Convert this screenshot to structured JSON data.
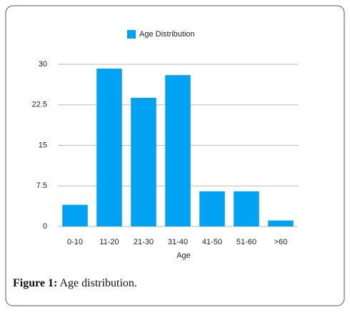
{
  "chart_data": {
    "type": "bar",
    "legend": "Age Distribution",
    "xlabel": "Age",
    "categories": [
      "0-10",
      "11-20",
      "21-30",
      "31-40",
      "41-50",
      "51-60",
      ">60"
    ],
    "series": [
      {
        "name": "Age Distribution",
        "color": "#00a2f2",
        "values": [
          4,
          29.2,
          23.8,
          28,
          6.5,
          6.5,
          1.1
        ]
      }
    ],
    "ylim": [
      0,
      30
    ],
    "yticks": [
      0,
      7.5,
      15,
      22.5,
      30
    ],
    "grid": true,
    "legend_position": "top"
  },
  "caption": {
    "label": "Figure 1:",
    "text": "Age distribution."
  }
}
